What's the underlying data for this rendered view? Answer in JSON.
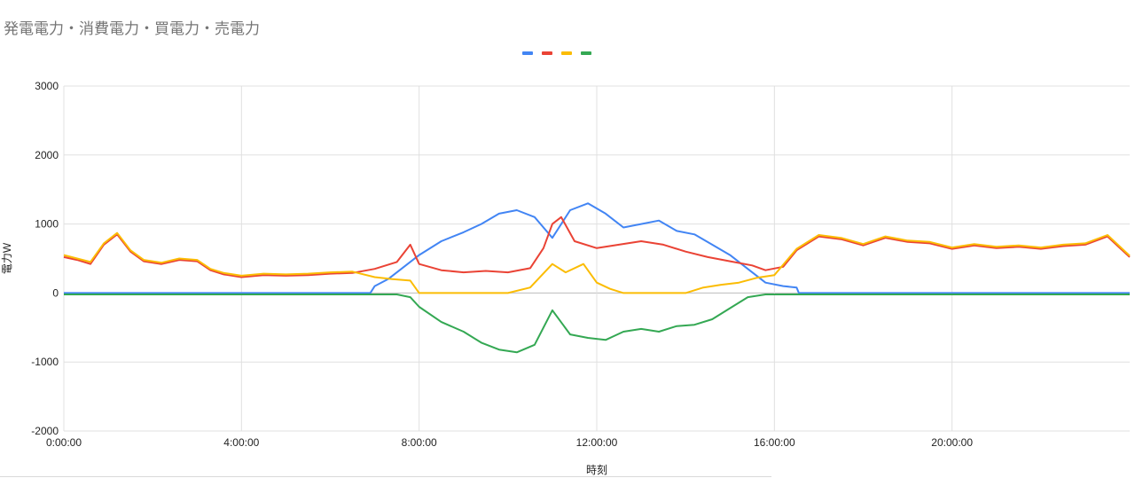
{
  "chart_data": {
    "type": "line",
    "title": "発電電力・消費電力・買電力・売電力",
    "xlabel": "時刻",
    "ylabel": "電力W",
    "ylim": [
      -2000,
      3000
    ],
    "yticks": [
      -2000,
      -1000,
      0,
      1000,
      2000,
      3000
    ],
    "xlim": [
      0,
      24
    ],
    "xticks": [
      {
        "hour": 0,
        "label": "0:00:00"
      },
      {
        "hour": 4,
        "label": "4:00:00"
      },
      {
        "hour": 8,
        "label": "8:00:00"
      },
      {
        "hour": 12,
        "label": "12:00:00"
      },
      {
        "hour": 16,
        "label": "16:00:00"
      },
      {
        "hour": 20,
        "label": "20:00:00"
      }
    ],
    "grid": true,
    "legend_position": "top",
    "series": [
      {
        "color": "#4285F4",
        "values": [
          [
            0,
            0
          ],
          [
            6.9,
            0
          ],
          [
            7.0,
            100
          ],
          [
            7.3,
            200
          ],
          [
            7.6,
            350
          ],
          [
            8.0,
            550
          ],
          [
            8.5,
            750
          ],
          [
            9.0,
            880
          ],
          [
            9.4,
            1000
          ],
          [
            9.8,
            1150
          ],
          [
            10.2,
            1200
          ],
          [
            10.6,
            1100
          ],
          [
            11.0,
            800
          ],
          [
            11.4,
            1200
          ],
          [
            11.8,
            1300
          ],
          [
            12.2,
            1150
          ],
          [
            12.6,
            950
          ],
          [
            13.0,
            1000
          ],
          [
            13.4,
            1050
          ],
          [
            13.8,
            900
          ],
          [
            14.2,
            850
          ],
          [
            14.6,
            700
          ],
          [
            15.0,
            550
          ],
          [
            15.4,
            350
          ],
          [
            15.8,
            150
          ],
          [
            16.2,
            100
          ],
          [
            16.5,
            80
          ],
          [
            16.55,
            0
          ],
          [
            24,
            0
          ]
        ]
      },
      {
        "color": "#EA4335",
        "values": [
          [
            0,
            520
          ],
          [
            0.3,
            480
          ],
          [
            0.6,
            420
          ],
          [
            0.9,
            700
          ],
          [
            1.2,
            850
          ],
          [
            1.5,
            600
          ],
          [
            1.8,
            460
          ],
          [
            2.2,
            420
          ],
          [
            2.6,
            480
          ],
          [
            3.0,
            460
          ],
          [
            3.3,
            330
          ],
          [
            3.6,
            270
          ],
          [
            4.0,
            230
          ],
          [
            4.5,
            260
          ],
          [
            5.0,
            250
          ],
          [
            5.5,
            260
          ],
          [
            6.0,
            280
          ],
          [
            6.5,
            290
          ],
          [
            7.0,
            350
          ],
          [
            7.5,
            450
          ],
          [
            7.8,
            700
          ],
          [
            8.0,
            420
          ],
          [
            8.5,
            330
          ],
          [
            9.0,
            300
          ],
          [
            9.5,
            320
          ],
          [
            10.0,
            300
          ],
          [
            10.5,
            360
          ],
          [
            10.8,
            650
          ],
          [
            11.0,
            1000
          ],
          [
            11.2,
            1100
          ],
          [
            11.5,
            750
          ],
          [
            12.0,
            650
          ],
          [
            12.5,
            700
          ],
          [
            13.0,
            750
          ],
          [
            13.5,
            700
          ],
          [
            14.0,
            600
          ],
          [
            14.5,
            520
          ],
          [
            15.0,
            460
          ],
          [
            15.5,
            400
          ],
          [
            15.8,
            330
          ],
          [
            16.2,
            380
          ],
          [
            16.5,
            620
          ],
          [
            17.0,
            820
          ],
          [
            17.5,
            780
          ],
          [
            18.0,
            690
          ],
          [
            18.5,
            800
          ],
          [
            19.0,
            740
          ],
          [
            19.5,
            720
          ],
          [
            20.0,
            640
          ],
          [
            20.5,
            690
          ],
          [
            21.0,
            650
          ],
          [
            21.5,
            670
          ],
          [
            22.0,
            640
          ],
          [
            22.5,
            680
          ],
          [
            23.0,
            700
          ],
          [
            23.5,
            820
          ],
          [
            24,
            520
          ]
        ]
      },
      {
        "color": "#FBBC04",
        "values": [
          [
            0,
            550
          ],
          [
            0.3,
            500
          ],
          [
            0.6,
            450
          ],
          [
            0.9,
            720
          ],
          [
            1.2,
            870
          ],
          [
            1.5,
            620
          ],
          [
            1.8,
            480
          ],
          [
            2.2,
            440
          ],
          [
            2.6,
            500
          ],
          [
            3.0,
            480
          ],
          [
            3.3,
            350
          ],
          [
            3.6,
            290
          ],
          [
            4.0,
            250
          ],
          [
            4.5,
            280
          ],
          [
            5.0,
            270
          ],
          [
            5.5,
            280
          ],
          [
            6.0,
            300
          ],
          [
            6.5,
            310
          ],
          [
            7.0,
            230
          ],
          [
            7.4,
            200
          ],
          [
            7.8,
            180
          ],
          [
            8.0,
            0
          ],
          [
            9.0,
            0
          ],
          [
            10.0,
            0
          ],
          [
            10.5,
            80
          ],
          [
            11.0,
            420
          ],
          [
            11.3,
            300
          ],
          [
            11.7,
            420
          ],
          [
            12.0,
            150
          ],
          [
            12.3,
            60
          ],
          [
            12.6,
            0
          ],
          [
            13.0,
            0
          ],
          [
            14.0,
            0
          ],
          [
            14.4,
            80
          ],
          [
            14.8,
            120
          ],
          [
            15.2,
            150
          ],
          [
            15.6,
            220
          ],
          [
            16.0,
            260
          ],
          [
            16.5,
            640
          ],
          [
            17.0,
            840
          ],
          [
            17.5,
            800
          ],
          [
            18.0,
            710
          ],
          [
            18.5,
            820
          ],
          [
            19.0,
            760
          ],
          [
            19.5,
            740
          ],
          [
            20.0,
            660
          ],
          [
            20.5,
            710
          ],
          [
            21.0,
            670
          ],
          [
            21.5,
            690
          ],
          [
            22.0,
            660
          ],
          [
            22.5,
            700
          ],
          [
            23.0,
            720
          ],
          [
            23.5,
            840
          ],
          [
            24,
            540
          ]
        ]
      },
      {
        "color": "#34A853",
        "values": [
          [
            0,
            -20
          ],
          [
            6.9,
            -20
          ],
          [
            7.0,
            -20
          ],
          [
            7.5,
            -20
          ],
          [
            7.8,
            -60
          ],
          [
            8.0,
            -200
          ],
          [
            8.5,
            -420
          ],
          [
            9.0,
            -560
          ],
          [
            9.4,
            -720
          ],
          [
            9.8,
            -820
          ],
          [
            10.2,
            -860
          ],
          [
            10.6,
            -750
          ],
          [
            11.0,
            -250
          ],
          [
            11.4,
            -600
          ],
          [
            11.8,
            -650
          ],
          [
            12.2,
            -680
          ],
          [
            12.6,
            -560
          ],
          [
            13.0,
            -520
          ],
          [
            13.4,
            -560
          ],
          [
            13.8,
            -480
          ],
          [
            14.2,
            -460
          ],
          [
            14.6,
            -380
          ],
          [
            15.0,
            -220
          ],
          [
            15.4,
            -60
          ],
          [
            15.8,
            -20
          ],
          [
            24,
            -20
          ]
        ]
      }
    ]
  }
}
